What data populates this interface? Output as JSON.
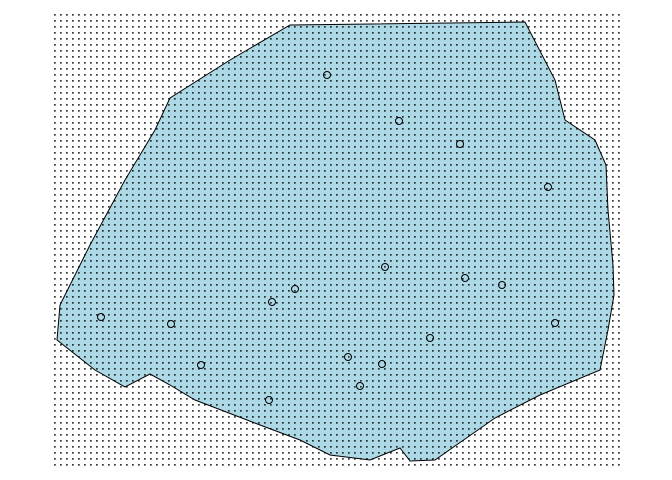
{
  "diagram": {
    "kind": "point-pattern-window",
    "fill_color": "#add8e6",
    "outline_color": "#000000",
    "grid_dot_color": "#000000",
    "marker_color": "#000000",
    "point_count": 21,
    "marker_shape": "open-circle",
    "point_layer_name": "data-point",
    "window_name": "observation-window",
    "grid_name": "quadrature-dot-grid"
  }
}
